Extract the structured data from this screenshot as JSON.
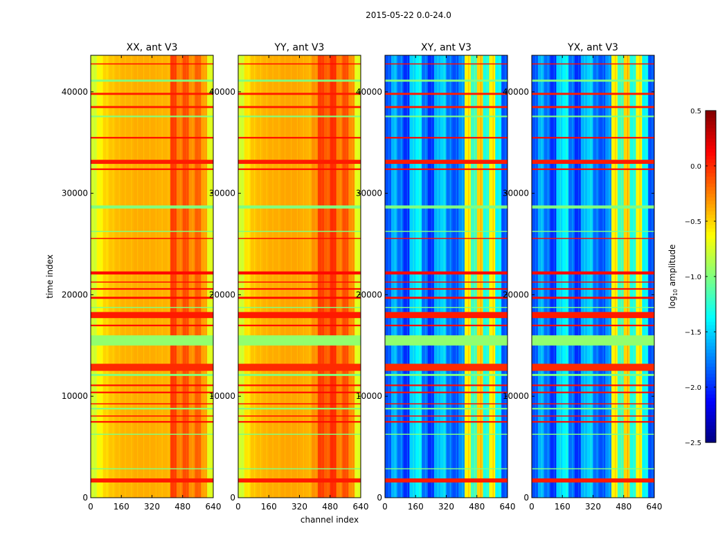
{
  "chart_data": {
    "type": "heatmap",
    "title": "2015-05-22 0.0-24.0",
    "xlabel": "channel index",
    "ylabel": "time index",
    "xlim": [
      0,
      640
    ],
    "ylim": [
      0,
      43600
    ],
    "xticks": [
      "0",
      "160",
      "320",
      "480",
      "640"
    ],
    "xtick_values": [
      0,
      160,
      320,
      480,
      640
    ],
    "yticks": [
      "0",
      "10000",
      "20000",
      "30000",
      "40000"
    ],
    "ytick_values": [
      0,
      10000,
      20000,
      30000,
      40000
    ],
    "colorbar": {
      "label": "log10 amplitude",
      "label_base": "log",
      "label_sub": "10",
      "label_rest": " amplitude",
      "range": [
        -2.5,
        0.5
      ],
      "ticks": [
        "0.5",
        "0.0",
        "−0.5",
        "−1.0",
        "−1.5",
        "−2.0",
        "−2.5"
      ],
      "tick_values": [
        0.5,
        0.0,
        -0.5,
        -1.0,
        -1.5,
        -2.0,
        -2.5
      ],
      "colormap": "jet"
    },
    "channel_bin_width": 32,
    "panels": [
      {
        "title": "XX, ant V3",
        "kind": "auto",
        "channel_profile": [
          -0.75,
          -0.6,
          -0.5,
          -0.45,
          -0.42,
          -0.4,
          -0.4,
          -0.38,
          -0.38,
          -0.38,
          -0.38,
          -0.4,
          -0.4,
          -0.05,
          -0.25,
          -0.1,
          -0.3,
          -0.15,
          -0.35,
          -0.7
        ]
      },
      {
        "title": "YY, ant V3",
        "kind": "auto",
        "channel_profile": [
          -0.75,
          -0.55,
          -0.45,
          -0.42,
          -0.4,
          -0.38,
          -0.38,
          -0.36,
          -0.36,
          -0.36,
          -0.38,
          -0.4,
          -0.3,
          -0.05,
          -0.15,
          0.0,
          -0.25,
          -0.1,
          -0.3,
          -0.7
        ]
      },
      {
        "title": "XY, ant V3",
        "kind": "cross",
        "channel_profile": [
          -1.9,
          -1.6,
          -1.8,
          -2.0,
          -1.5,
          -1.4,
          -1.8,
          -2.0,
          -1.6,
          -1.5,
          -1.8,
          -1.9,
          -1.7,
          -0.6,
          -1.2,
          -0.5,
          -1.3,
          -0.6,
          -1.4,
          -1.9
        ]
      },
      {
        "title": "YX, ant V3",
        "kind": "cross",
        "channel_profile": [
          -1.9,
          -1.6,
          -1.8,
          -2.0,
          -1.5,
          -1.4,
          -1.8,
          -2.0,
          -1.6,
          -1.5,
          -1.8,
          -1.9,
          -1.7,
          -0.6,
          -1.2,
          -0.5,
          -1.3,
          -0.6,
          -1.4,
          -1.9
        ]
      }
    ],
    "time_stripes": [
      {
        "t": [
          1500,
          1900
        ],
        "value": 0.05
      },
      {
        "t": [
          2800,
          2900
        ],
        "value": -1.0
      },
      {
        "t": [
          6200,
          6300
        ],
        "value": -1.0
      },
      {
        "t": [
          7400,
          7550
        ],
        "value": 0.1
      },
      {
        "t": [
          8000,
          8100
        ],
        "value": 0.1
      },
      {
        "t": [
          8700,
          8850
        ],
        "value": -1.0
      },
      {
        "t": [
          9200,
          9300
        ],
        "value": 0.1
      },
      {
        "t": [
          10300,
          10450
        ],
        "value": 0.1
      },
      {
        "t": [
          11000,
          11150
        ],
        "value": 0.1
      },
      {
        "t": [
          12000,
          12200
        ],
        "value": -1.0
      },
      {
        "t": [
          12500,
          13200
        ],
        "value": 0.0
      },
      {
        "t": [
          15000,
          16000
        ],
        "value": -0.95
      },
      {
        "t": [
          16900,
          17050
        ],
        "value": 0.1
      },
      {
        "t": [
          17700,
          18300
        ],
        "value": 0.05
      },
      {
        "t": [
          18700,
          18800
        ],
        "value": -1.0
      },
      {
        "t": [
          19600,
          19800
        ],
        "value": 0.1
      },
      {
        "t": [
          20500,
          20650
        ],
        "value": 0.1
      },
      {
        "t": [
          21200,
          21300
        ],
        "value": 0.1
      },
      {
        "t": [
          22000,
          22300
        ],
        "value": 0.1
      },
      {
        "t": [
          25500,
          25600
        ],
        "value": 0.1
      },
      {
        "t": [
          26200,
          26300
        ],
        "value": -1.0
      },
      {
        "t": [
          28500,
          28800
        ],
        "value": -1.0
      },
      {
        "t": [
          32300,
          32450
        ],
        "value": 0.1
      },
      {
        "t": [
          32900,
          33300
        ],
        "value": 0.05
      },
      {
        "t": [
          35400,
          35550
        ],
        "value": 0.1
      },
      {
        "t": [
          37500,
          37650
        ],
        "value": -1.0
      },
      {
        "t": [
          38400,
          38600
        ],
        "value": 0.05
      },
      {
        "t": [
          39700,
          39900
        ],
        "value": 0.05
      },
      {
        "t": [
          41000,
          41200
        ],
        "value": -1.0
      },
      {
        "t": [
          42700,
          42800
        ],
        "value": 0.1
      }
    ]
  }
}
